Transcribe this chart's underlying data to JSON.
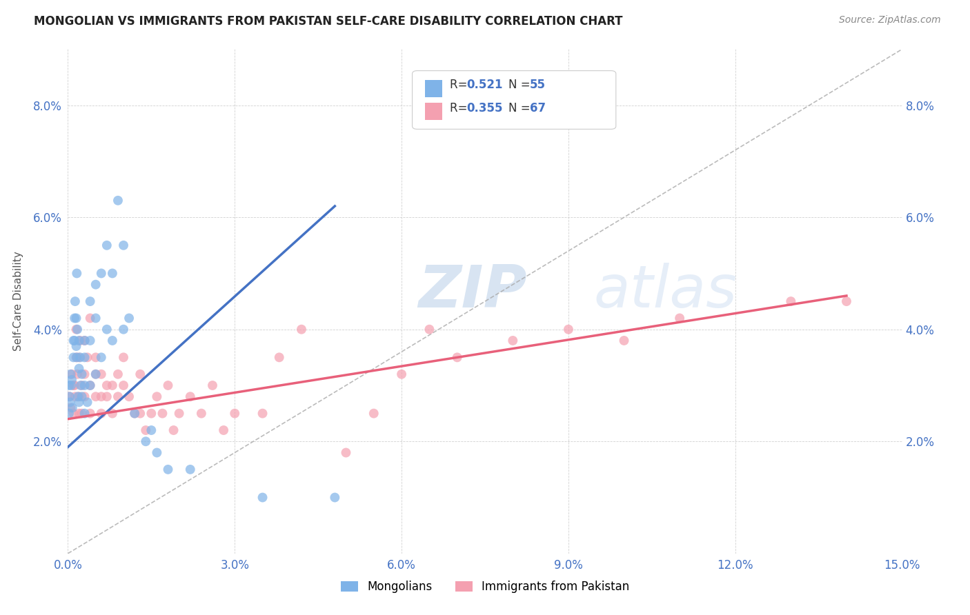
{
  "title": "MONGOLIAN VS IMMIGRANTS FROM PAKISTAN SELF-CARE DISABILITY CORRELATION CHART",
  "source": "Source: ZipAtlas.com",
  "ylabel": "Self-Care Disability",
  "xlim": [
    0.0,
    0.15
  ],
  "ylim": [
    0.0,
    0.09
  ],
  "xticks": [
    0.0,
    0.03,
    0.06,
    0.09,
    0.12,
    0.15
  ],
  "yticks": [
    0.0,
    0.02,
    0.04,
    0.06,
    0.08
  ],
  "xticklabels": [
    "0.0%",
    "3.0%",
    "6.0%",
    "9.0%",
    "12.0%",
    "15.0%"
  ],
  "yticklabels": [
    "",
    "2.0%",
    "4.0%",
    "6.0%",
    "8.0%"
  ],
  "color_mongolian": "#7fb3e8",
  "color_pakistan": "#f4a0b0",
  "color_line_mongolian": "#4472c4",
  "color_line_pakistan": "#e8607a",
  "color_dashed_line": "#aaaaaa",
  "background_color": "#ffffff",
  "watermark_zip": "ZIP",
  "watermark_atlas": "atlas",
  "legend_label1": "Mongolians",
  "legend_label2": "Immigrants from Pakistan",
  "mongolian_x": [
    0.0002,
    0.0002,
    0.0003,
    0.0004,
    0.0005,
    0.0006,
    0.0007,
    0.0008,
    0.001,
    0.001,
    0.0012,
    0.0012,
    0.0013,
    0.0015,
    0.0015,
    0.0016,
    0.0016,
    0.0017,
    0.0018,
    0.002,
    0.002,
    0.002,
    0.0022,
    0.0023,
    0.0025,
    0.0025,
    0.003,
    0.003,
    0.003,
    0.003,
    0.0035,
    0.004,
    0.004,
    0.004,
    0.005,
    0.005,
    0.005,
    0.006,
    0.006,
    0.007,
    0.007,
    0.008,
    0.008,
    0.009,
    0.01,
    0.01,
    0.011,
    0.012,
    0.014,
    0.015,
    0.016,
    0.018,
    0.022,
    0.035,
    0.048
  ],
  "mongolian_y": [
    0.025,
    0.03,
    0.028,
    0.027,
    0.032,
    0.03,
    0.031,
    0.026,
    0.038,
    0.035,
    0.042,
    0.038,
    0.045,
    0.037,
    0.042,
    0.05,
    0.035,
    0.04,
    0.028,
    0.038,
    0.033,
    0.027,
    0.035,
    0.03,
    0.032,
    0.028,
    0.035,
    0.03,
    0.025,
    0.038,
    0.027,
    0.045,
    0.038,
    0.03,
    0.048,
    0.042,
    0.032,
    0.05,
    0.035,
    0.055,
    0.04,
    0.05,
    0.038,
    0.063,
    0.055,
    0.04,
    0.042,
    0.025,
    0.02,
    0.022,
    0.018,
    0.015,
    0.015,
    0.01,
    0.01
  ],
  "pakistan_x": [
    0.0003,
    0.0005,
    0.0007,
    0.001,
    0.001,
    0.0012,
    0.0013,
    0.0015,
    0.0015,
    0.0017,
    0.002,
    0.002,
    0.002,
    0.0022,
    0.0025,
    0.0025,
    0.003,
    0.003,
    0.003,
    0.0035,
    0.004,
    0.004,
    0.004,
    0.005,
    0.005,
    0.005,
    0.006,
    0.006,
    0.006,
    0.007,
    0.007,
    0.008,
    0.008,
    0.009,
    0.009,
    0.01,
    0.01,
    0.011,
    0.012,
    0.013,
    0.013,
    0.014,
    0.015,
    0.016,
    0.017,
    0.018,
    0.019,
    0.02,
    0.022,
    0.024,
    0.026,
    0.028,
    0.03,
    0.035,
    0.038,
    0.042,
    0.05,
    0.055,
    0.06,
    0.065,
    0.07,
    0.08,
    0.09,
    0.1,
    0.11,
    0.13,
    0.14
  ],
  "pakistan_y": [
    0.028,
    0.026,
    0.032,
    0.03,
    0.025,
    0.03,
    0.028,
    0.04,
    0.035,
    0.032,
    0.025,
    0.028,
    0.035,
    0.038,
    0.03,
    0.025,
    0.032,
    0.028,
    0.038,
    0.035,
    0.03,
    0.025,
    0.042,
    0.032,
    0.028,
    0.035,
    0.028,
    0.032,
    0.025,
    0.03,
    0.028,
    0.03,
    0.025,
    0.032,
    0.028,
    0.03,
    0.035,
    0.028,
    0.025,
    0.032,
    0.025,
    0.022,
    0.025,
    0.028,
    0.025,
    0.03,
    0.022,
    0.025,
    0.028,
    0.025,
    0.03,
    0.022,
    0.025,
    0.025,
    0.035,
    0.04,
    0.018,
    0.025,
    0.032,
    0.04,
    0.035,
    0.038,
    0.04,
    0.038,
    0.042,
    0.045,
    0.045
  ],
  "line_m_x0": 0.0,
  "line_m_y0": 0.019,
  "line_m_x1": 0.048,
  "line_m_y1": 0.062,
  "line_p_x0": 0.0,
  "line_p_y0": 0.024,
  "line_p_x1": 0.14,
  "line_p_y1": 0.046
}
